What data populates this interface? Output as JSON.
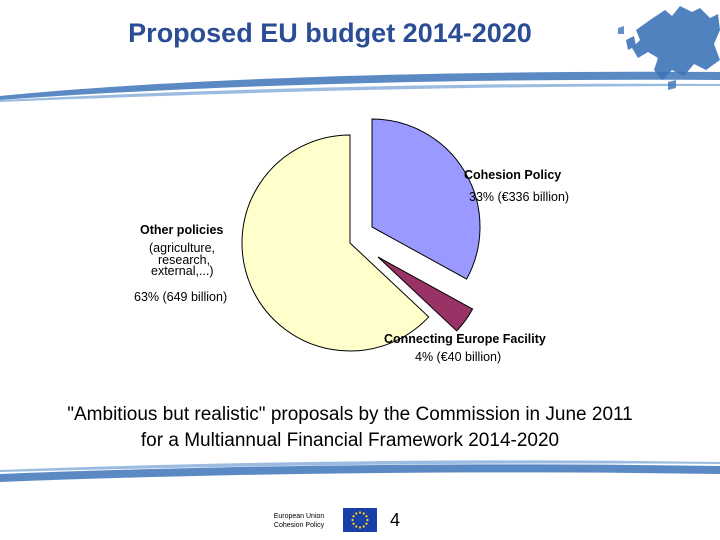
{
  "header": {
    "title": "Proposed EU budget 2014-2020"
  },
  "chart_data": {
    "type": "pie",
    "exploded": true,
    "slices": [
      {
        "name": "Cohesion Policy",
        "value": 33,
        "amount_label": "33% (€336 billion)",
        "color": "#9999ff"
      },
      {
        "name": "Connecting Europe Facility",
        "value": 4,
        "amount_label": "4% (€40 billion)",
        "color": "#993366"
      },
      {
        "name": "Other policies",
        "value": 63,
        "amount_label": "63% (649 billion)",
        "color": "#ffffcc",
        "sublabel_lines": [
          "(agriculture,",
          "research,",
          "external,...)"
        ]
      }
    ]
  },
  "caption": {
    "line1": "\"Ambitious but realistic\" proposals by the Commission in June 2011",
    "line2": "for a Multiannual Financial Framework 2014-2020"
  },
  "footer": {
    "org_line1": "European Union",
    "org_line2": "Cohesion Policy",
    "page_number": "4"
  },
  "colors": {
    "title": "#2a4d95",
    "swoosh": "#3d74b8",
    "flag_blue": "#1a3fa6",
    "flag_stars": "#ffdd00"
  }
}
